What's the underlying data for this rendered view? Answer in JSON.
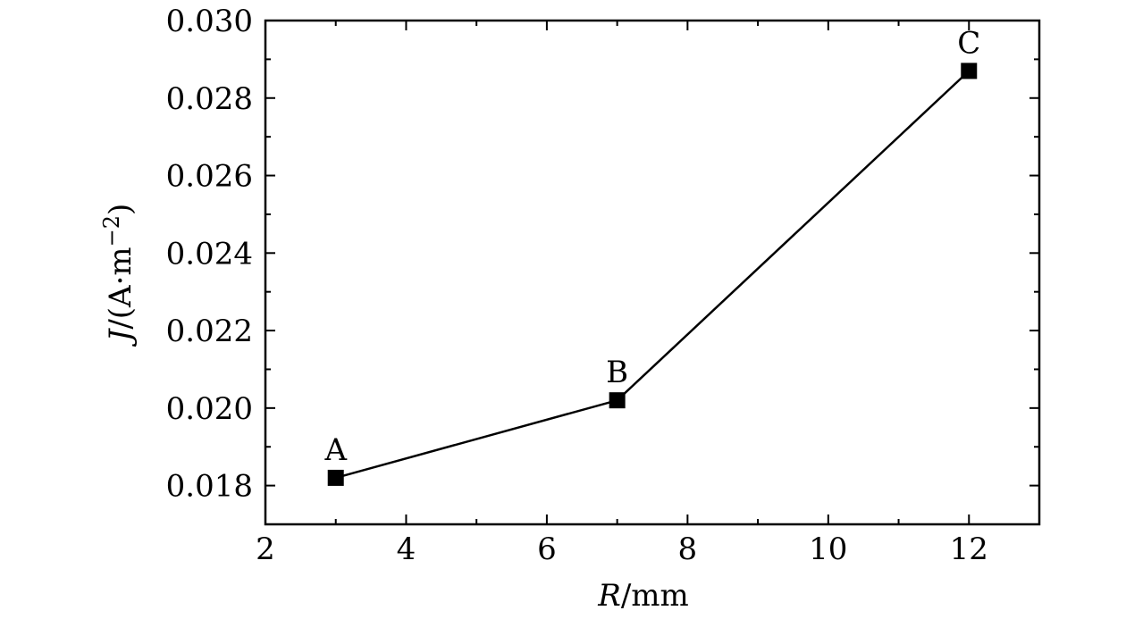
{
  "chart_data": {
    "type": "line",
    "title": "",
    "xlabel": {
      "var": "R",
      "unit": "/mm"
    },
    "ylabel": {
      "var": "J",
      "unit": "/(A·m",
      "sup": "−2",
      "close": ")"
    },
    "xlim": [
      2,
      13
    ],
    "ylim": [
      0.017,
      0.03
    ],
    "xticks": [
      2,
      4,
      6,
      8,
      10,
      12
    ],
    "xtick_labels": [
      "2",
      "4",
      "6",
      "8",
      "10",
      "12"
    ],
    "x_minor_ticks": [
      3,
      5,
      7,
      9,
      11,
      13
    ],
    "yticks": [
      0.018,
      0.02,
      0.022,
      0.024,
      0.026,
      0.028,
      0.03
    ],
    "ytick_labels": [
      "0.018",
      "0.020",
      "0.022",
      "0.024",
      "0.026",
      "0.028",
      "0.030"
    ],
    "y_minor_ticks": [
      0.017,
      0.019,
      0.021,
      0.023,
      0.025,
      0.027,
      0.029
    ],
    "grid": false,
    "series": [
      {
        "x": [
          3,
          7,
          12
        ],
        "y": [
          0.0182,
          0.0202,
          0.0287
        ],
        "labels": [
          "A",
          "B",
          "C"
        ],
        "marker": "square",
        "color": "#000000"
      }
    ]
  }
}
